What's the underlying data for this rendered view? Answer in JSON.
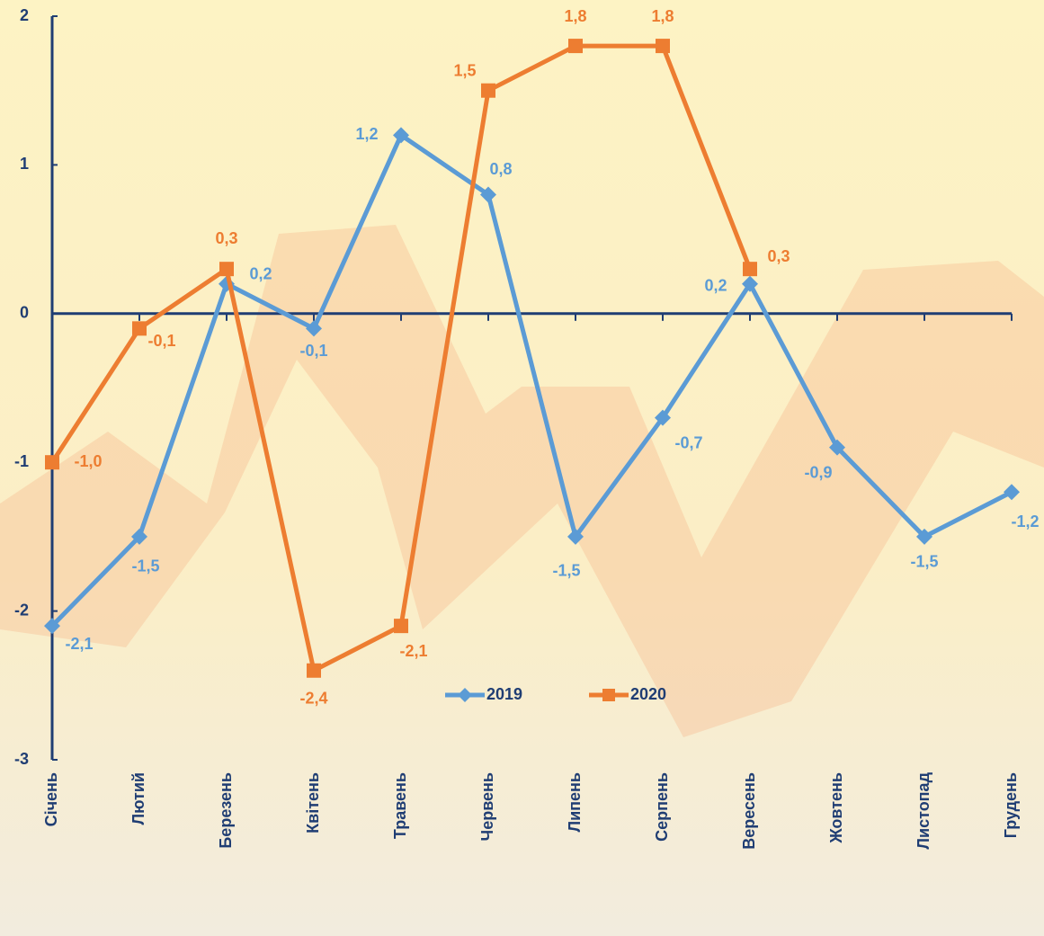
{
  "chart_data": {
    "type": "line",
    "categories": [
      "Січень",
      "Лютий",
      "Березень",
      "Квітень",
      "Травень",
      "Червень",
      "Липень",
      "Серпень",
      "Вересень",
      "Жовтень",
      "Листопад",
      "Грудень"
    ],
    "series": [
      {
        "name": "2019",
        "color": "#5b9bd5",
        "marker": "diamond",
        "values": [
          -2.1,
          -1.5,
          0.2,
          -0.1,
          1.2,
          0.8,
          -1.5,
          -0.7,
          0.2,
          -0.9,
          -1.5,
          -1.2
        ],
        "value_labels": [
          "-2,1",
          "-1,5",
          "0,2",
          "-0,1",
          "1,2",
          "0,8",
          "-1,5",
          "-0,7",
          "0,2",
          "-0,9",
          "-1,5",
          "-1,2"
        ]
      },
      {
        "name": "2020",
        "color": "#ed7d31",
        "marker": "square",
        "values": [
          -1.0,
          -0.1,
          0.3,
          -2.4,
          -2.1,
          1.5,
          1.8,
          1.8,
          0.3,
          null,
          null,
          null
        ],
        "value_labels": [
          "-1,0",
          "-0,1",
          "0,3",
          "-2,4",
          "-2,1",
          "1,5",
          "1,8",
          "1,8",
          "0,3",
          null,
          null,
          null
        ]
      }
    ],
    "ylim": [
      -3,
      2
    ],
    "yticks": [
      -3,
      -2,
      -1,
      0,
      1,
      2
    ],
    "legend": "bottom"
  }
}
